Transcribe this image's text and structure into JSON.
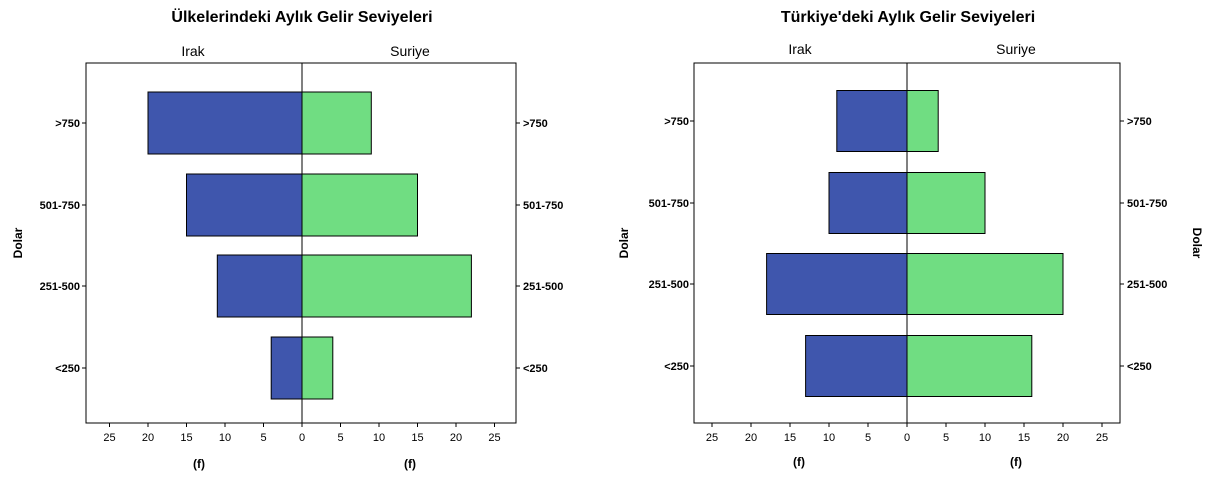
{
  "colors": {
    "left_bar": "#3f56ad",
    "right_bar": "#70dd82",
    "stroke": "#000000",
    "background": "#ffffff"
  },
  "chart_data": [
    {
      "type": "bar",
      "orientation": "horizontal-population-pyramid",
      "title": "Ülkelerindeki Aylık Gelir Seviyeleri",
      "left_label": "Irak",
      "right_label": "Suriye",
      "ylabel": "Dolar",
      "ylabel_sides": [
        "left"
      ],
      "xlabel_left": "(f)",
      "xlabel_right": "(f)",
      "categories": [
        ">750",
        "501-750",
        "251-500",
        "<250"
      ],
      "series": [
        {
          "name": "Irak",
          "values": [
            20,
            15,
            11,
            4
          ]
        },
        {
          "name": "Suriye",
          "values": [
            9,
            15,
            22,
            4
          ]
        }
      ],
      "xlim": [
        0,
        26
      ],
      "xticks": [
        "25",
        "20",
        "15",
        "10",
        "5",
        "0",
        "5",
        "10",
        "15",
        "20",
        "25"
      ]
    },
    {
      "type": "bar",
      "orientation": "horizontal-population-pyramid",
      "title": "Türkiye'deki Aylık Gelir Seviyeleri",
      "left_label": "Irak",
      "right_label": "Suriye",
      "ylabel": "Dolar",
      "ylabel_sides": [
        "left",
        "right"
      ],
      "xlabel_left": "(f)",
      "xlabel_right": "(f)",
      "categories": [
        ">750",
        "501-750",
        "251-500",
        "<250"
      ],
      "series": [
        {
          "name": "Irak",
          "values": [
            9,
            10,
            18,
            13
          ]
        },
        {
          "name": "Suriye",
          "values": [
            4,
            10,
            20,
            16
          ]
        }
      ],
      "xlim": [
        0,
        25.5
      ],
      "xticks": [
        "25",
        "20",
        "15",
        "10",
        "5",
        "0",
        "5",
        "10",
        "15",
        "20",
        "25"
      ]
    }
  ]
}
